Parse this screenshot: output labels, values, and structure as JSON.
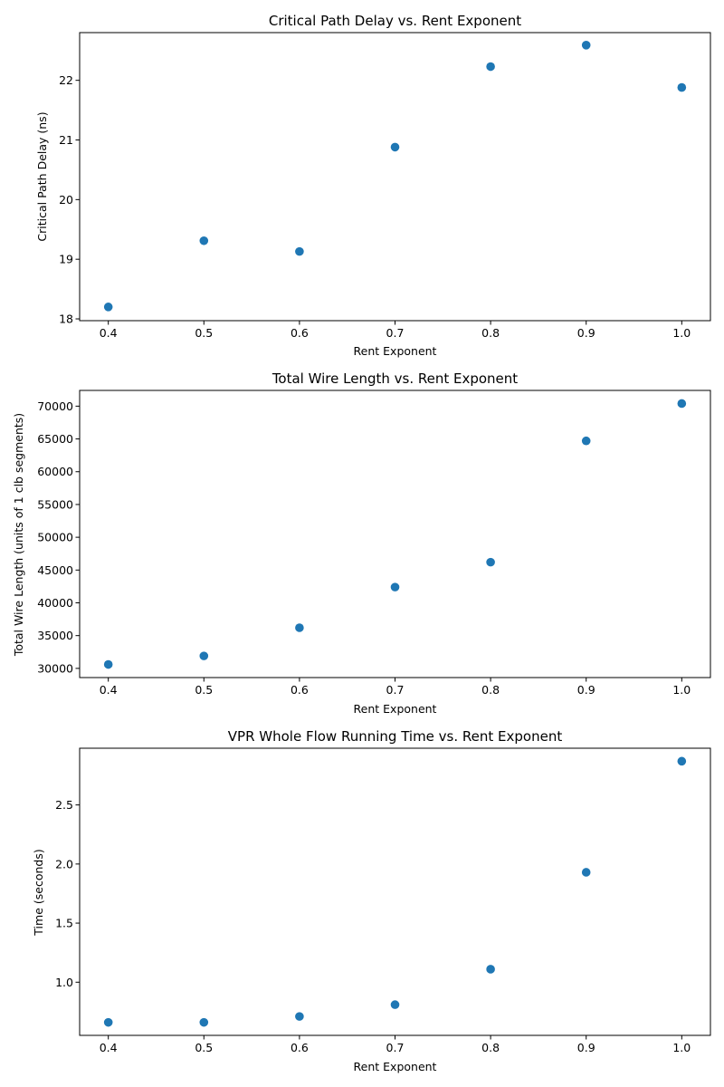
{
  "chart_data": [
    {
      "type": "scatter",
      "title": "Critical Path Delay vs. Rent Exponent",
      "xlabel": "Rent Exponent",
      "ylabel": "Critical Path Delay (ns)",
      "x": [
        0.4,
        0.5,
        0.6,
        0.7,
        0.8,
        0.9,
        1.0
      ],
      "y": [
        18.2,
        19.31,
        19.13,
        20.88,
        22.23,
        22.59,
        21.88
      ],
      "xlim": [
        0.37,
        1.03
      ],
      "ylim": [
        17.97,
        22.8
      ],
      "xticks": [
        0.4,
        0.5,
        0.6,
        0.7,
        0.8,
        0.9,
        1.0
      ],
      "xtick_labels": [
        "0.4",
        "0.5",
        "0.6",
        "0.7",
        "0.8",
        "0.9",
        "1.0"
      ],
      "yticks": [
        18,
        19,
        20,
        21,
        22
      ],
      "ytick_labels": [
        "18",
        "19",
        "20",
        "21",
        "22"
      ],
      "color": "#1f77b4",
      "grid": false
    },
    {
      "type": "scatter",
      "title": "Total Wire Length vs. Rent Exponent",
      "xlabel": "Rent Exponent",
      "ylabel": "Total Wire Length (units of 1 clb segments)",
      "x": [
        0.4,
        0.5,
        0.6,
        0.7,
        0.8,
        0.9,
        1.0
      ],
      "y": [
        30600,
        31900,
        36200,
        42400,
        46200,
        64700,
        70400
      ],
      "xlim": [
        0.37,
        1.03
      ],
      "ylim": [
        28600,
        72400
      ],
      "xticks": [
        0.4,
        0.5,
        0.6,
        0.7,
        0.8,
        0.9,
        1.0
      ],
      "xtick_labels": [
        "0.4",
        "0.5",
        "0.6",
        "0.7",
        "0.8",
        "0.9",
        "1.0"
      ],
      "yticks": [
        30000,
        35000,
        40000,
        45000,
        50000,
        55000,
        60000,
        65000,
        70000
      ],
      "ytick_labels": [
        "30000",
        "35000",
        "40000",
        "45000",
        "50000",
        "55000",
        "60000",
        "65000",
        "70000"
      ],
      "color": "#1f77b4",
      "grid": false
    },
    {
      "type": "scatter",
      "title": "VPR Whole Flow Running Time vs. Rent Exponent",
      "xlabel": "Rent Exponent",
      "ylabel": "Time (seconds)",
      "x": [
        0.4,
        0.5,
        0.6,
        0.7,
        0.8,
        0.9,
        1.0
      ],
      "y": [
        0.66,
        0.66,
        0.71,
        0.81,
        1.11,
        1.93,
        2.87
      ],
      "xlim": [
        0.37,
        1.03
      ],
      "ylim": [
        0.55,
        2.98
      ],
      "xticks": [
        0.4,
        0.5,
        0.6,
        0.7,
        0.8,
        0.9,
        1.0
      ],
      "xtick_labels": [
        "0.4",
        "0.5",
        "0.6",
        "0.7",
        "0.8",
        "0.9",
        "1.0"
      ],
      "yticks": [
        1.0,
        1.5,
        2.0,
        2.5
      ],
      "ytick_labels": [
        "1.0",
        "1.5",
        "2.0",
        "2.5"
      ],
      "color": "#1f77b4",
      "grid": false
    }
  ]
}
